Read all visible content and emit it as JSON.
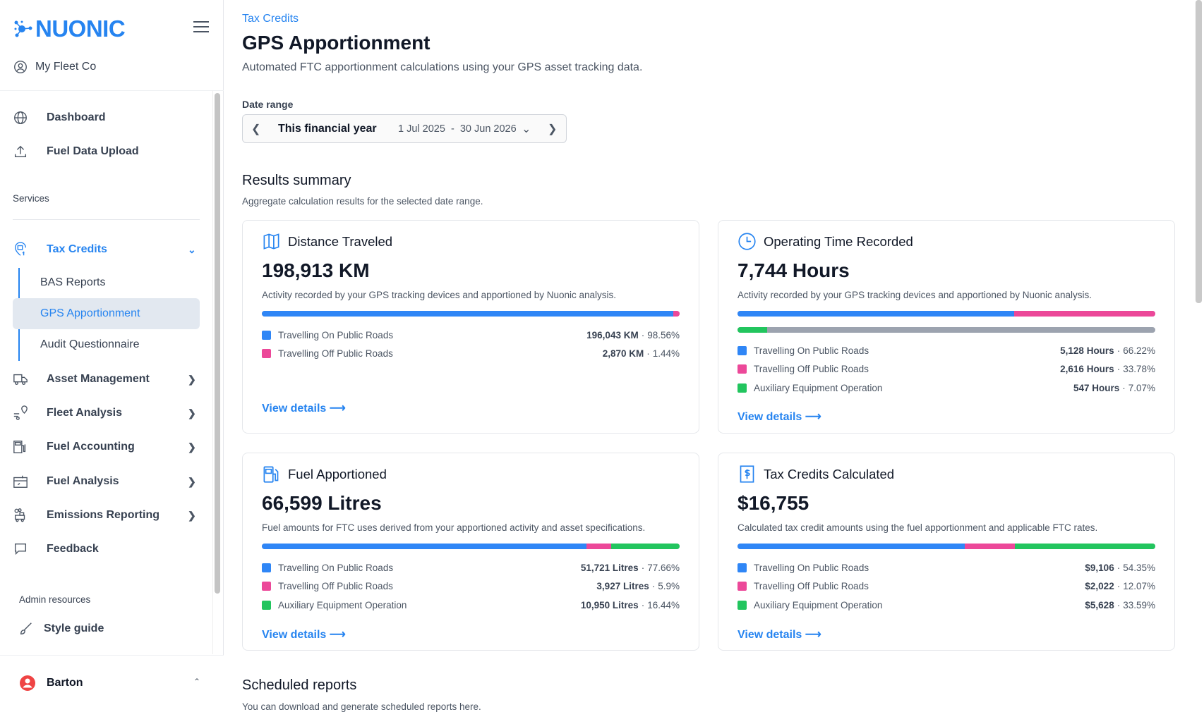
{
  "sidebar": {
    "brand": "NUONIC",
    "org": "My Fleet Co",
    "nav_top": [
      {
        "label": "Dashboard"
      },
      {
        "label": "Fuel Data Upload"
      }
    ],
    "services_label": "Services",
    "tax_credits": {
      "label": "Tax Credits",
      "children": [
        {
          "label": "BAS Reports"
        },
        {
          "label": "GPS Apportionment"
        },
        {
          "label": "Audit Questionnaire"
        }
      ]
    },
    "nav_services": [
      {
        "label": "Asset Management"
      },
      {
        "label": "Fleet Analysis"
      },
      {
        "label": "Fuel Accounting"
      },
      {
        "label": "Fuel Analysis"
      },
      {
        "label": "Emissions Reporting"
      },
      {
        "label": "Feedback"
      }
    ],
    "admin_label": "Admin resources",
    "style_guide": "Style guide",
    "user": "Barton"
  },
  "page": {
    "breadcrumb": "Tax Credits",
    "title": "GPS Apportionment",
    "description": "Automated FTC apportionment calculations using your GPS asset tracking data.",
    "date_range": {
      "label": "Date range",
      "period": "This financial year",
      "range": "1 Jul 2025  -  30 Jun 2026"
    },
    "results": {
      "title": "Results summary",
      "description": "Aggregate calculation results for the selected date range."
    },
    "scheduled": {
      "title": "Scheduled reports",
      "description": "You can download and generate scheduled reports here."
    }
  },
  "colors": {
    "blue": "#2f86f6",
    "pink": "#ec4899",
    "green": "#22c55e",
    "gray": "#9ca3af",
    "accent": "#2684f0"
  },
  "cards": [
    {
      "title": "Distance Traveled",
      "icon": "map-icon",
      "value": "198,913 KM",
      "description": "Activity recorded by your GPS tracking devices and apportioned by Nuonic analysis.",
      "link": "View details",
      "items": [
        {
          "label": "Travelling On Public Roads",
          "amount": "196,043 KM",
          "percent": "98.56%",
          "pct": 98.56,
          "color": "blue"
        },
        {
          "label": "Travelling Off Public Roads",
          "amount": "2,870 KM",
          "percent": "1.44%",
          "pct": 1.44,
          "color": "pink"
        }
      ]
    },
    {
      "title": "Operating Time Recorded",
      "icon": "clock-icon",
      "value": "7,744 Hours",
      "description": "Activity recorded by your GPS tracking devices and apportioned by Nuonic analysis.",
      "link": "View details",
      "items": [
        {
          "label": "Travelling On Public Roads",
          "amount": "5,128 Hours",
          "percent": "66.22%",
          "pct": 66.22,
          "color": "blue"
        },
        {
          "label": "Travelling Off Public Roads",
          "amount": "2,616 Hours",
          "percent": "33.78%",
          "pct": 33.78,
          "color": "pink"
        },
        {
          "label": "Auxiliary Equipment Operation",
          "amount": "547 Hours",
          "percent": "7.07%",
          "pct": 7.07,
          "color": "green"
        }
      ]
    },
    {
      "title": "Fuel Apportioned",
      "icon": "fuel-pump-icon",
      "value": "66,599 Litres",
      "description": "Fuel amounts for FTC uses derived from your apportioned activity and asset specifications.",
      "link": "View details",
      "items": [
        {
          "label": "Travelling On Public Roads",
          "amount": "51,721 Litres",
          "percent": "77.66%",
          "pct": 77.66,
          "color": "blue"
        },
        {
          "label": "Travelling Off Public Roads",
          "amount": "3,927 Litres",
          "percent": "5.9%",
          "pct": 5.9,
          "color": "pink"
        },
        {
          "label": "Auxiliary Equipment Operation",
          "amount": "10,950 Litres",
          "percent": "16.44%",
          "pct": 16.44,
          "color": "green"
        }
      ]
    },
    {
      "title": "Tax Credits Calculated",
      "icon": "dollar-receipt-icon",
      "value": "$16,755",
      "description": "Calculated tax credit amounts using the fuel apportionment and applicable FTC rates.",
      "link": "View details",
      "items": [
        {
          "label": "Travelling On Public Roads",
          "amount": "$9,106",
          "percent": "54.35%",
          "pct": 54.35,
          "color": "blue"
        },
        {
          "label": "Travelling Off Public Roads",
          "amount": "$2,022",
          "percent": "12.07%",
          "pct": 12.07,
          "color": "pink"
        },
        {
          "label": "Auxiliary Equipment Operation",
          "amount": "$5,628",
          "percent": "33.59%",
          "pct": 33.59,
          "color": "green"
        }
      ]
    }
  ]
}
